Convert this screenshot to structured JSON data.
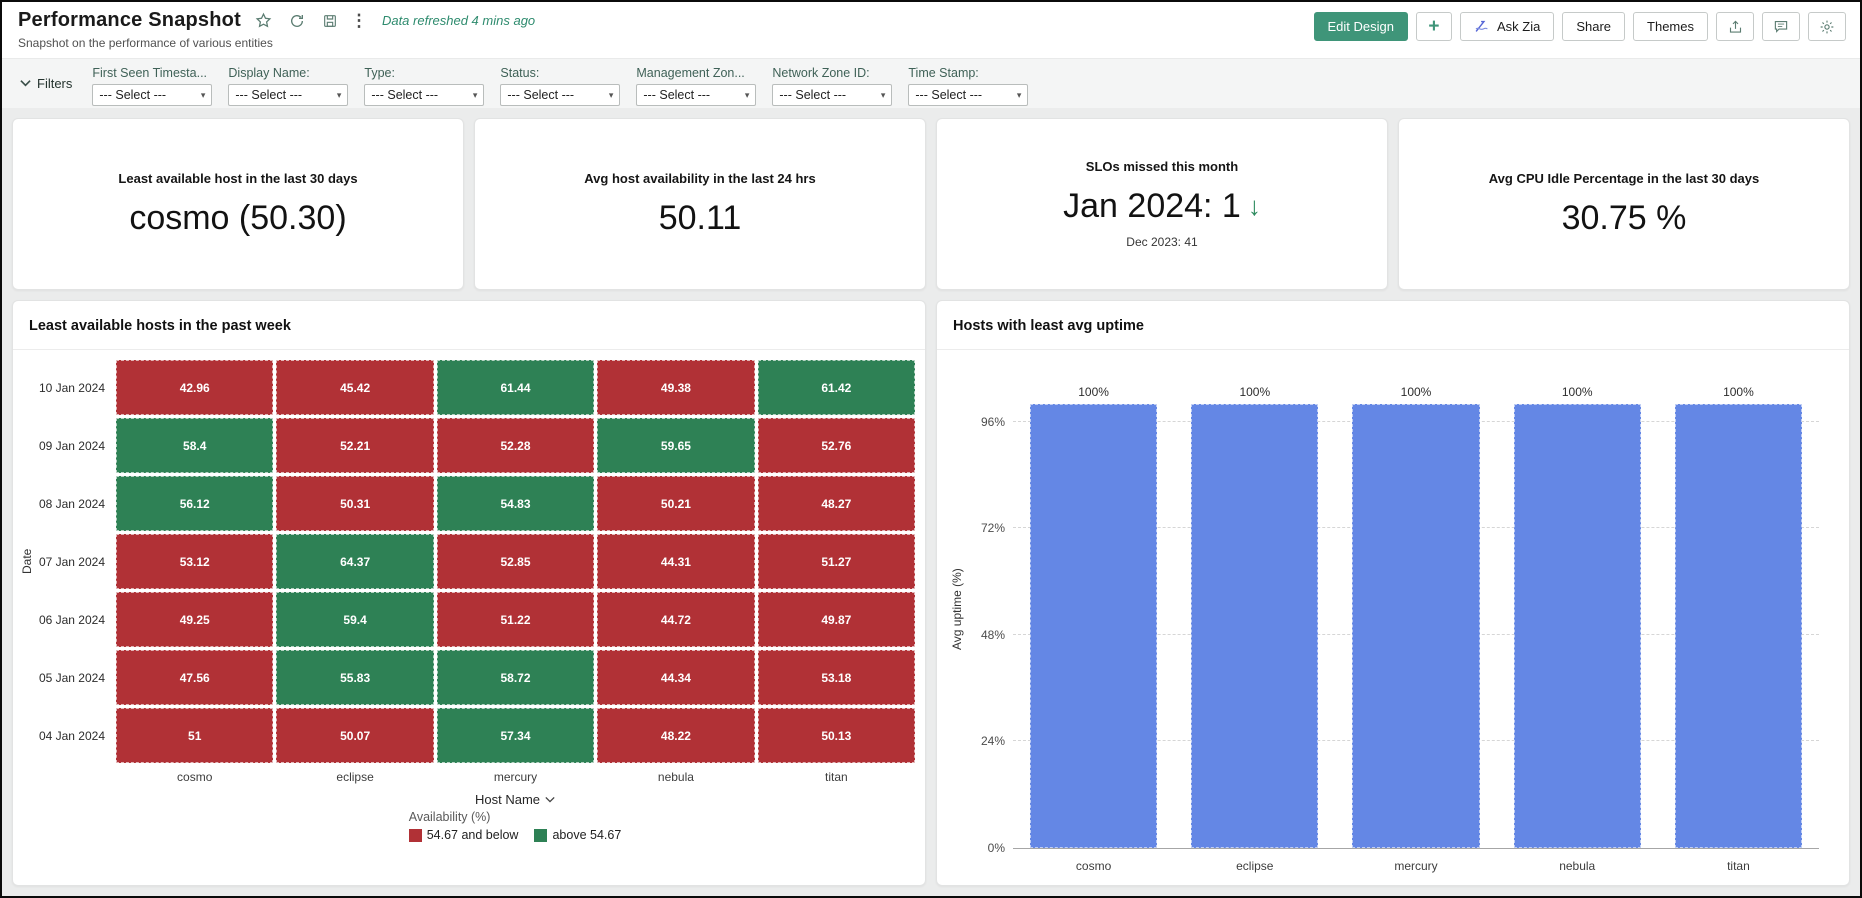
{
  "header": {
    "title": "Performance Snapshot",
    "subtitle": "Snapshot on the performance of various entities",
    "refresh_note": "Data refreshed 4 mins ago",
    "buttons": {
      "edit_design": "Edit Design",
      "add": "+",
      "ask_zia": "Ask Zia",
      "share": "Share",
      "themes": "Themes"
    }
  },
  "filters": {
    "label": "Filters",
    "select_placeholder": "--- Select ---",
    "items": [
      "First Seen Timesta...",
      "Display Name:",
      "Type:",
      "Status:",
      "Management Zon...",
      "Network Zone ID:",
      "Time Stamp:"
    ]
  },
  "kpis": [
    {
      "label": "Least available host in the last 30 days",
      "value": "cosmo (50.30)"
    },
    {
      "label": "Avg host availability in the last 24 hrs",
      "value": "50.11"
    },
    {
      "label": "SLOs missed this month",
      "value": "Jan 2024: 1",
      "trend_arrow": "↓",
      "subvalue": "Dec 2023: 41"
    },
    {
      "label": "Avg CPU Idle Percentage in the last 30 days",
      "value": "30.75 %"
    }
  ],
  "chart_data": [
    {
      "type": "heatmap",
      "title": "Least available hosts in the past week",
      "ylabel": "Date",
      "xlabel": "Host Name",
      "rows": [
        "10 Jan 2024",
        "09 Jan 2024",
        "08 Jan 2024",
        "07 Jan 2024",
        "06 Jan 2024",
        "05 Jan 2024",
        "04 Jan 2024"
      ],
      "columns": [
        "cosmo",
        "eclipse",
        "mercury",
        "nebula",
        "titan"
      ],
      "values": [
        [
          "42.96",
          "45.42",
          "61.44",
          "49.38",
          "61.42"
        ],
        [
          "58.4",
          "52.21",
          "52.28",
          "59.65",
          "52.76"
        ],
        [
          "56.12",
          "50.31",
          "54.83",
          "50.21",
          "48.27"
        ],
        [
          "53.12",
          "64.37",
          "52.85",
          "44.31",
          "51.27"
        ],
        [
          "49.25",
          "59.4",
          "51.22",
          "44.72",
          "49.87"
        ],
        [
          "47.56",
          "55.83",
          "58.72",
          "44.34",
          "53.18"
        ],
        [
          "51",
          "50.07",
          "57.34",
          "48.22",
          "50.13"
        ]
      ],
      "threshold": 54.67,
      "legend": {
        "title": "Availability (%)",
        "items": [
          {
            "label": "54.67 and below",
            "color": "#b13136"
          },
          {
            "label": "above 54.67",
            "color": "#2e8155"
          }
        ]
      }
    },
    {
      "type": "bar",
      "title": "Hosts with least avg uptime",
      "ylabel": "Avg uptime (%)",
      "categories": [
        "cosmo",
        "eclipse",
        "mercury",
        "nebula",
        "titan"
      ],
      "values": [
        100,
        100,
        100,
        100,
        100
      ],
      "value_labels": [
        "100%",
        "100%",
        "100%",
        "100%",
        "100%"
      ],
      "yticks": [
        {
          "value": 0,
          "label": "0%"
        },
        {
          "value": 24,
          "label": "24%"
        },
        {
          "value": 48,
          "label": "48%"
        },
        {
          "value": 72,
          "label": "72%"
        },
        {
          "value": 96,
          "label": "96%"
        }
      ],
      "ylim": [
        0,
        104
      ],
      "grid": "dashed",
      "bar_color": "#6487e5"
    }
  ],
  "colors": {
    "accent_green": "#3f9579",
    "refresh_note_green": "#2e8b6e",
    "trend_down_green": "#2e8b5f",
    "heatmap_low": "#b13136",
    "heatmap_high": "#2e8155",
    "bar_blue": "#6487e5"
  }
}
